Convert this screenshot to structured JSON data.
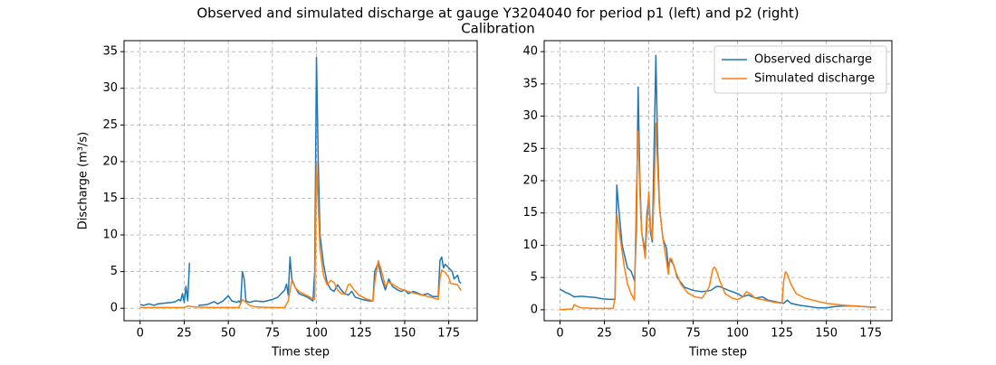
{
  "title": "Observed and simulated discharge at gauge Y3204040 for period p1 (left) and p2 (right)",
  "subtitle": "Calibration",
  "chart_data": [
    {
      "type": "line",
      "x_label": "Time step",
      "y_label": "Discharge (m³/s)",
      "xlim": [
        -9.1,
        191.1
      ],
      "ylim": [
        -1.7,
        36.5
      ],
      "xticks": [
        0,
        25,
        50,
        75,
        100,
        125,
        150,
        175
      ],
      "yticks": [
        0,
        5,
        10,
        15,
        20,
        25,
        30,
        35
      ],
      "grid": true,
      "series": [
        {
          "name": "Observed discharge",
          "color": "#1f77b4",
          "x": [
            0,
            2,
            5,
            8,
            10,
            14,
            18,
            20,
            22,
            23,
            24,
            25,
            26,
            27,
            28,
            30,
            33,
            38,
            42,
            44,
            47,
            50,
            52,
            55,
            56,
            57,
            58,
            59,
            60,
            62,
            65,
            70,
            75,
            78,
            80,
            82,
            83,
            84,
            85,
            86,
            88,
            90,
            95,
            98,
            99,
            100,
            101,
            102,
            104,
            106,
            108,
            110,
            112,
            114,
            116,
            118,
            120,
            122,
            126,
            130,
            132,
            133,
            135,
            137,
            139,
            141,
            143,
            146,
            148,
            150,
            152,
            155,
            158,
            160,
            163,
            166,
            169,
            170,
            171,
            172,
            173,
            175,
            177,
            178,
            180,
            181,
            182
          ],
          "values": [
            0.5,
            0.4,
            0.6,
            0.4,
            0.6,
            0.7,
            0.8,
            0.9,
            1.2,
            1.0,
            2.0,
            0.8,
            3.0,
            1.0,
            6.2,
            null,
            0.4,
            0.5,
            0.9,
            0.6,
            1.0,
            1.7,
            1.0,
            0.8,
            1.0,
            0.7,
            5.0,
            4.0,
            1.0,
            0.8,
            1.0,
            0.9,
            1.2,
            1.5,
            2.0,
            2.5,
            3.3,
            1.8,
            7.0,
            4.0,
            2.8,
            2.0,
            1.5,
            1.0,
            5.0,
            34.2,
            20,
            10,
            6,
            3.5,
            2.6,
            2.3,
            3.2,
            2.5,
            2.0,
            1.8,
            2.3,
            1.5,
            1.2,
            1.0,
            1.0,
            5.0,
            6.2,
            4.0,
            2.5,
            4.0,
            3.0,
            2.5,
            2.3,
            2.5,
            2.0,
            2.3,
            2.0,
            1.8,
            2.0,
            1.6,
            1.6,
            6.5,
            7.0,
            5.5,
            6.0,
            5.5,
            5.0,
            4.0,
            4.5,
            3.6,
            3.4
          ]
        },
        {
          "name": "Simulated discharge",
          "color": "#ff7f0e",
          "x": [
            0,
            10,
            20,
            25,
            27,
            30,
            40,
            50,
            56,
            58,
            60,
            62,
            65,
            75,
            82,
            84,
            86,
            88,
            90,
            94,
            98,
            99,
            100,
            101,
            102,
            104,
            106,
            108,
            110,
            112,
            114,
            116,
            118,
            119,
            121,
            124,
            128,
            132,
            133,
            135,
            137,
            139,
            141,
            143,
            147,
            152,
            158,
            165,
            169,
            170,
            171,
            173,
            175,
            176,
            178,
            180,
            182
          ],
          "values": [
            0.1,
            0.1,
            0.1,
            0.1,
            0.3,
            0.2,
            0.1,
            0.1,
            0.1,
            1.2,
            0.8,
            0.4,
            0.2,
            0.1,
            0.1,
            1.0,
            3.8,
            2.8,
            2.3,
            1.8,
            1.3,
            1.2,
            20.0,
            14,
            8,
            4.5,
            3.2,
            3.8,
            3.5,
            2.5,
            2.0,
            1.9,
            3.2,
            3.3,
            2.6,
            1.8,
            1.3,
            1.0,
            3.5,
            6.5,
            5.0,
            3.0,
            3.6,
            3.3,
            2.7,
            2.3,
            1.9,
            1.5,
            1.2,
            4.0,
            5.2,
            4.9,
            4.2,
            3.4,
            3.3,
            3.2,
            2.4
          ]
        }
      ]
    },
    {
      "type": "line",
      "x_label": "Time step",
      "xlim": [
        -8.9,
        186.9
      ],
      "ylim": [
        -1.7,
        41.7
      ],
      "xticks": [
        0,
        25,
        50,
        75,
        100,
        125,
        150,
        175
      ],
      "yticks": [
        0,
        5,
        10,
        15,
        20,
        25,
        30,
        35,
        40
      ],
      "grid": true,
      "legend": "upper right",
      "series": [
        {
          "name": "Observed discharge",
          "color": "#1f77b4",
          "x": [
            0,
            3,
            5,
            8,
            12,
            16,
            20,
            24,
            28,
            31,
            32,
            33,
            35,
            38,
            40,
            42,
            43,
            44,
            45,
            46,
            48,
            49,
            50,
            51,
            52,
            53,
            54,
            55,
            56,
            58,
            60,
            61,
            62,
            64,
            66,
            70,
            75,
            80,
            85,
            88,
            90,
            95,
            100,
            103,
            106,
            110,
            114,
            117,
            122,
            126,
            128,
            130,
            135,
            140,
            145,
            150,
            155,
            160,
            165,
            170,
            175,
            178
          ],
          "values": [
            3.2,
            2.7,
            2.5,
            2.0,
            2.1,
            2.0,
            1.9,
            1.7,
            1.6,
            1.6,
            19.3,
            16,
            10,
            6.5,
            6,
            4.5,
            12,
            34.5,
            20,
            12,
            9,
            15,
            17.5,
            12,
            10.5,
            25,
            39.4,
            25,
            16,
            11,
            9.5,
            6.5,
            7.8,
            7,
            5,
            3.5,
            3.0,
            2.8,
            3.0,
            3.6,
            3.6,
            3.0,
            2.5,
            2.0,
            2.3,
            1.8,
            2.0,
            1.5,
            1.2,
            1.0,
            1.5,
            1.0,
            0.7,
            0.5,
            0.3,
            0.3,
            0.5,
            0.6,
            0.6,
            0.5,
            0.4,
            0.4
          ]
        },
        {
          "name": "Simulated discharge",
          "color": "#ff7f0e",
          "x": [
            0,
            5,
            7,
            8,
            10,
            12,
            20,
            28,
            30,
            31,
            32,
            34,
            36,
            38,
            40,
            42,
            43,
            44,
            45,
            46,
            48,
            50,
            51,
            52,
            53,
            54,
            55,
            56,
            58,
            60,
            61,
            62,
            63,
            65,
            68,
            72,
            76,
            80,
            84,
            86,
            87,
            88,
            90,
            93,
            97,
            100,
            103,
            105,
            107,
            110,
            115,
            120,
            125,
            126,
            127,
            128,
            130,
            133,
            138,
            145,
            150,
            160,
            170,
            178
          ],
          "values": [
            0.0,
            0.1,
            0.1,
            0.8,
            0.5,
            0.3,
            0.2,
            0.2,
            0.2,
            2,
            14.8,
            11,
            7,
            4,
            2.5,
            1.5,
            18,
            27.7,
            18,
            12,
            8,
            18.3,
            13,
            11,
            18,
            28.9,
            22,
            16,
            11,
            7.5,
            5.5,
            8.0,
            7.8,
            6,
            4,
            2.6,
            2.0,
            1.8,
            3.5,
            6.3,
            6.6,
            6.2,
            4.5,
            2.5,
            1.8,
            1.6,
            2.0,
            2.8,
            2.5,
            1.8,
            1.5,
            1.2,
            1.0,
            4.5,
            5.9,
            5.5,
            4,
            2.5,
            1.8,
            1.3,
            1.0,
            0.7,
            0.5,
            0.4
          ]
        }
      ]
    }
  ]
}
